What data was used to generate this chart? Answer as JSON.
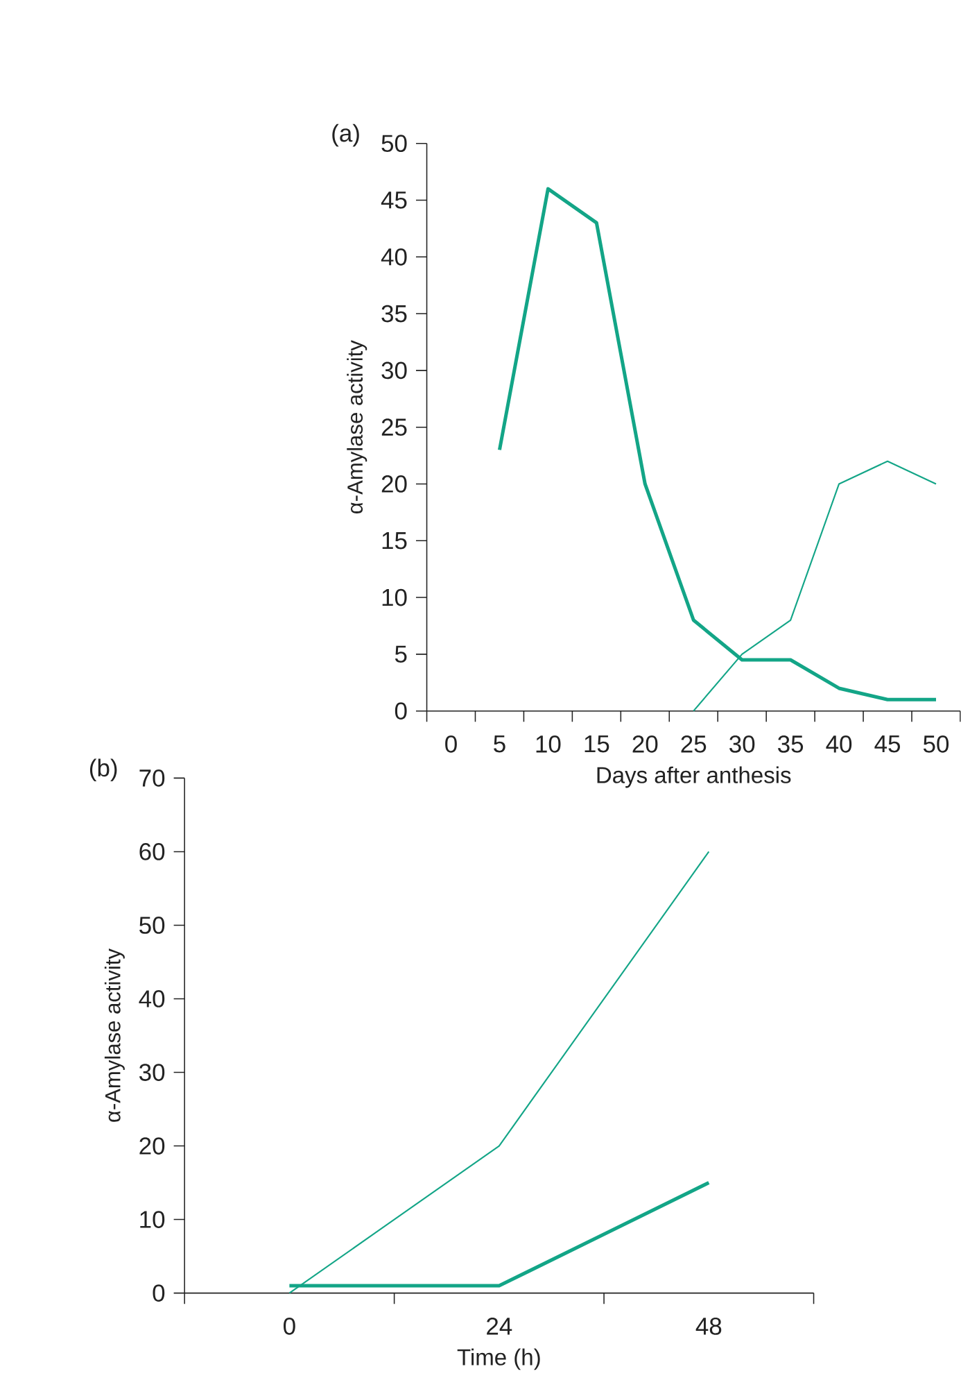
{
  "chart_data": [
    {
      "type": "line",
      "title": "(a)",
      "xlabel": "Days after anthesis",
      "ylabel": "α-Amylase activity",
      "categories": [
        "0",
        "5",
        "10",
        "15",
        "20",
        "25",
        "30",
        "35",
        "40",
        "45",
        "50"
      ],
      "series": [
        {
          "color": "#13a587",
          "values": [
            null,
            23,
            46,
            43,
            20,
            8,
            4.5,
            4.5,
            2,
            1,
            1
          ]
        },
        {
          "color": "#13a587",
          "values": [
            null,
            null,
            null,
            null,
            null,
            0,
            5,
            8,
            20,
            22,
            20
          ]
        }
      ],
      "ylim": [
        0,
        50
      ],
      "yticks": [
        0,
        5,
        10,
        15,
        20,
        25,
        30,
        35,
        40,
        45,
        50
      ]
    },
    {
      "type": "line",
      "title": "(b)",
      "xlabel": "Time (h)",
      "ylabel": "α-Amylase activity",
      "categories": [
        "0",
        "24",
        "48"
      ],
      "series": [
        {
          "color": "#13a587",
          "values": [
            1,
            1,
            15
          ]
        },
        {
          "color": "#13a587",
          "values": [
            0,
            20,
            60
          ]
        }
      ],
      "ylim": [
        0,
        70
      ],
      "yticks": [
        0,
        10,
        20,
        30,
        40,
        50,
        60,
        70
      ]
    }
  ]
}
